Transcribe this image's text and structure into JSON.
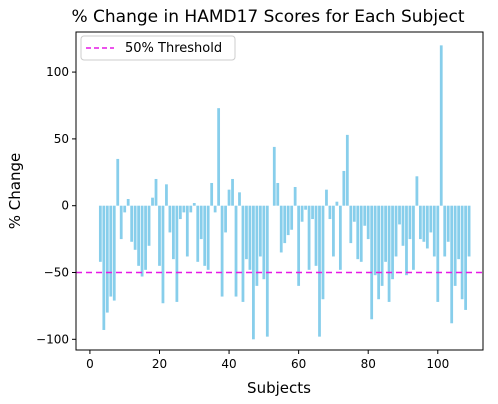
{
  "chart_data": {
    "type": "bar",
    "title": "% Change in HAMD17 Scores for Each Subject",
    "xlabel": "Subjects",
    "ylabel": "% Change",
    "xlim": [
      -4,
      113
    ],
    "ylim": [
      -108,
      130
    ],
    "xticks": [
      0,
      20,
      40,
      60,
      80,
      100
    ],
    "yticks": [
      -100,
      -50,
      0,
      50,
      100
    ],
    "bar_color": "#87ceeb",
    "threshold": {
      "name": "50% Threshold",
      "value": -50,
      "color": "#e619e6",
      "style": "dashed"
    },
    "legend": {
      "position": "top-left",
      "entries": [
        "50% Threshold"
      ]
    },
    "x": [
      3,
      4,
      5,
      6,
      7,
      8,
      9,
      10,
      11,
      12,
      13,
      14,
      15,
      16,
      17,
      18,
      19,
      20,
      21,
      22,
      23,
      24,
      25,
      26,
      27,
      28,
      29,
      30,
      31,
      32,
      33,
      34,
      35,
      36,
      37,
      38,
      39,
      40,
      41,
      42,
      43,
      44,
      45,
      46,
      47,
      48,
      49,
      50,
      51,
      52,
      53,
      54,
      55,
      56,
      57,
      58,
      59,
      60,
      61,
      62,
      63,
      64,
      65,
      66,
      67,
      68,
      69,
      70,
      71,
      72,
      73,
      74,
      75,
      76,
      77,
      78,
      79,
      80,
      81,
      82,
      83,
      84,
      85,
      86,
      87,
      88,
      89,
      90,
      91,
      92,
      93,
      94,
      95,
      96,
      97,
      98,
      99,
      100,
      101,
      102,
      103,
      104,
      105,
      106,
      107,
      108,
      109
    ],
    "values": [
      -42,
      -93,
      -80,
      -68,
      -71,
      35,
      -25,
      -5,
      5,
      -27,
      -33,
      -45,
      -53,
      -48,
      -30,
      6,
      20,
      -45,
      -73,
      16,
      -20,
      -40,
      -72,
      -10,
      -5,
      -38,
      -5,
      2,
      -42,
      -25,
      -45,
      -48,
      17,
      -5,
      73,
      -68,
      -20,
      12,
      20,
      -68,
      10,
      -72,
      -40,
      -48,
      -100,
      -60,
      -38,
      -55,
      -98,
      0,
      44,
      17,
      -35,
      -28,
      -22,
      -18,
      14,
      -60,
      -12,
      -3,
      -48,
      -10,
      -45,
      -98,
      -70,
      12,
      -10,
      -38,
      3,
      -48,
      26,
      53,
      -28,
      -12,
      -40,
      -42,
      -15,
      -25,
      -85,
      -52,
      -70,
      -60,
      -42,
      -72,
      -55,
      -38,
      -14,
      -30,
      -52,
      -25,
      -48,
      22,
      -25,
      -27,
      -32,
      -20,
      -38,
      -72,
      120,
      -38,
      -27,
      -88,
      -60,
      -40,
      -70,
      -78,
      -38
    ]
  }
}
